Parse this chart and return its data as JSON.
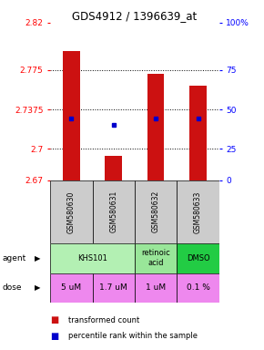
{
  "title": "GDS4912 / 1396639_at",
  "samples": [
    "GSM580630",
    "GSM580631",
    "GSM580632",
    "GSM580633"
  ],
  "bar_values": [
    2.793,
    2.693,
    2.771,
    2.76
  ],
  "bar_bottom": 2.67,
  "percentile_values": [
    2.729,
    2.723,
    2.729,
    2.729
  ],
  "ylim": [
    2.67,
    2.82
  ],
  "yticks_left": [
    2.82,
    2.775,
    2.7375,
    2.7,
    2.67
  ],
  "ytick_labels_left": [
    "2.82",
    "2.775",
    "2.7375",
    "2.7",
    "2.67"
  ],
  "yticks_right_vals": [
    2.82,
    2.775,
    2.7375,
    2.7,
    2.67
  ],
  "ytick_labels_right": [
    "100%",
    "75",
    "50",
    "25",
    "0"
  ],
  "hlines": [
    2.775,
    2.7375,
    2.7
  ],
  "bar_color": "#cc1111",
  "dot_color": "#0000cc",
  "sample_bg": "#cccccc",
  "agent_info": [
    [
      0,
      2,
      "KHS101",
      "#b3f0b3"
    ],
    [
      2,
      3,
      "retinoic\nacid",
      "#99e699"
    ],
    [
      3,
      4,
      "DMSO",
      "#22cc44"
    ]
  ],
  "dose_info": [
    [
      0,
      1,
      "5 uM",
      "#ee88ee"
    ],
    [
      1,
      2,
      "1.7 uM",
      "#ee88ee"
    ],
    [
      2,
      3,
      "1 uM",
      "#ee88ee"
    ],
    [
      3,
      4,
      "0.1 %",
      "#ee88ee"
    ]
  ],
  "legend_bar_color": "#cc1111",
  "legend_dot_color": "#0000cc",
  "n_samples": 4
}
